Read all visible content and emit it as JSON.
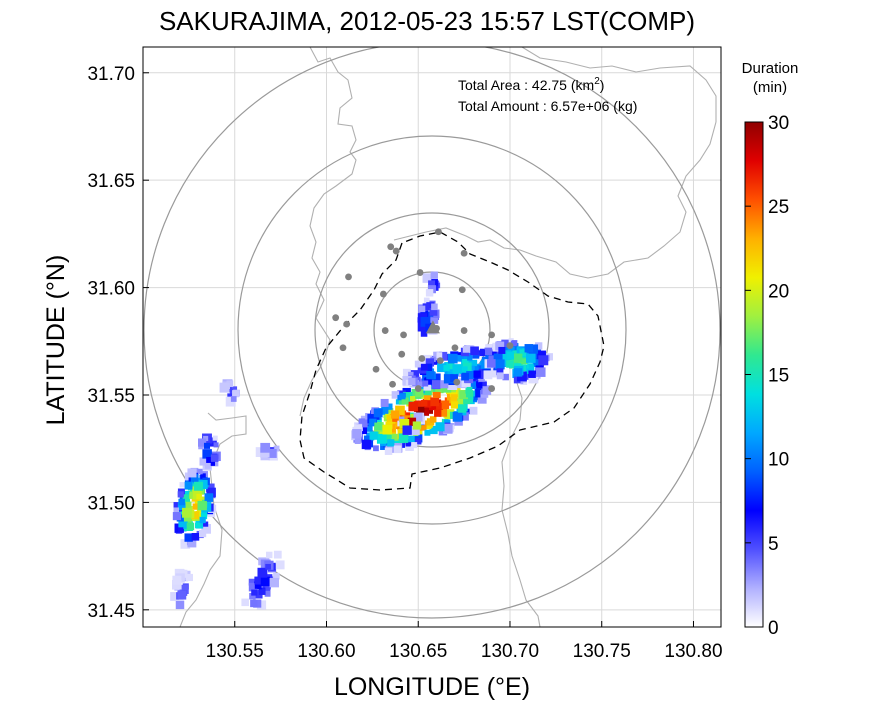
{
  "figure": {
    "title": "SAKURAJIMA, 2012-05-23 15:57 LST(COMP)",
    "annotation_area_label": "Total Area   : 42.75 (km",
    "annotation_area_sup": "2",
    "annotation_area_close": ")",
    "annotation_amount": "Total Amount : 6.57e+06 (kg)"
  },
  "chart_data": {
    "type": "heatmap",
    "title": "SAKURAJIMA, 2012-05-23 15:57 LST(COMP)",
    "xlabel": "LONGITUDE (°E)",
    "ylabel": "LATITUDE (°N)",
    "xlim": [
      130.5,
      130.815
    ],
    "ylim": [
      31.442,
      31.712
    ],
    "x_ticks": [
      "130.55",
      "130.60",
      "130.65",
      "130.70",
      "130.75",
      "130.80"
    ],
    "y_ticks": [
      "31.45",
      "31.50",
      "31.55",
      "31.60",
      "31.65",
      "31.70"
    ],
    "grid": true,
    "colorbar": {
      "title_line1": "Duration",
      "title_line2": "(min)",
      "range": [
        0,
        30
      ],
      "ticks": [
        "0",
        "5",
        "10",
        "15",
        "20",
        "25",
        "30"
      ],
      "colors": [
        "#ffffff",
        "#b0b0ff",
        "#5050ff",
        "#0000ff",
        "#0060ff",
        "#00a8ff",
        "#00e0e0",
        "#30e890",
        "#a0f040",
        "#f0f000",
        "#ffb000",
        "#ff5000",
        "#e00000",
        "#900000"
      ]
    },
    "vent": {
      "lon": 130.658,
      "lat": 31.581
    },
    "range_rings_km": [
      3,
      6,
      10,
      15
    ],
    "stations": [
      {
        "lon": 130.635,
        "lat": 31.619
      },
      {
        "lon": 130.661,
        "lat": 31.626
      },
      {
        "lon": 130.675,
        "lat": 31.616
      },
      {
        "lon": 130.638,
        "lat": 31.617
      },
      {
        "lon": 130.612,
        "lat": 31.605
      },
      {
        "lon": 130.651,
        "lat": 31.607
      },
      {
        "lon": 130.631,
        "lat": 31.597
      },
      {
        "lon": 130.674,
        "lat": 31.599
      },
      {
        "lon": 130.605,
        "lat": 31.586
      },
      {
        "lon": 130.611,
        "lat": 31.583
      },
      {
        "lon": 130.632,
        "lat": 31.58
      },
      {
        "lon": 130.642,
        "lat": 31.578
      },
      {
        "lon": 130.66,
        "lat": 31.581
      },
      {
        "lon": 130.675,
        "lat": 31.58
      },
      {
        "lon": 130.69,
        "lat": 31.578
      },
      {
        "lon": 130.7,
        "lat": 31.573
      },
      {
        "lon": 130.67,
        "lat": 31.572
      },
      {
        "lon": 130.609,
        "lat": 31.572
      },
      {
        "lon": 130.641,
        "lat": 31.569
      },
      {
        "lon": 130.652,
        "lat": 31.567
      },
      {
        "lon": 130.662,
        "lat": 31.566
      },
      {
        "lon": 130.627,
        "lat": 31.562
      },
      {
        "lon": 130.636,
        "lat": 31.555
      },
      {
        "lon": 130.65,
        "lat": 31.553
      },
      {
        "lon": 130.671,
        "lat": 31.556
      },
      {
        "lon": 130.69,
        "lat": 31.553
      }
    ],
    "ash_clusters": [
      {
        "lon": 130.652,
        "lat": 31.542,
        "rx": 0.04,
        "ry": 0.013,
        "rot": -25,
        "peak": 29,
        "n": 260
      },
      {
        "lon": 130.646,
        "lat": 31.537,
        "rx": 0.006,
        "ry": 0.004,
        "rot": 0,
        "peak": 30,
        "n": 25
      },
      {
        "lon": 130.672,
        "lat": 31.563,
        "rx": 0.03,
        "ry": 0.008,
        "rot": -12,
        "peak": 14,
        "n": 150
      },
      {
        "lon": 130.705,
        "lat": 31.566,
        "rx": 0.017,
        "ry": 0.01,
        "rot": 0,
        "peak": 16,
        "n": 90
      },
      {
        "lon": 130.655,
        "lat": 31.585,
        "rx": 0.005,
        "ry": 0.01,
        "rot": 10,
        "peak": 9,
        "n": 28
      },
      {
        "lon": 130.658,
        "lat": 31.602,
        "rx": 0.004,
        "ry": 0.005,
        "rot": 0,
        "peak": 6,
        "n": 10
      },
      {
        "lon": 130.528,
        "lat": 31.498,
        "rx": 0.01,
        "ry": 0.018,
        "rot": 10,
        "peak": 22,
        "n": 100
      },
      {
        "lon": 130.536,
        "lat": 31.524,
        "rx": 0.005,
        "ry": 0.008,
        "rot": 0,
        "peak": 10,
        "n": 22
      },
      {
        "lon": 130.547,
        "lat": 31.551,
        "rx": 0.005,
        "ry": 0.005,
        "rot": 0,
        "peak": 5,
        "n": 12
      },
      {
        "lon": 130.569,
        "lat": 31.524,
        "rx": 0.005,
        "ry": 0.003,
        "rot": 0,
        "peak": 4,
        "n": 9
      },
      {
        "lon": 130.522,
        "lat": 31.458,
        "rx": 0.005,
        "ry": 0.01,
        "rot": 0,
        "peak": 5,
        "n": 18
      },
      {
        "lon": 130.565,
        "lat": 31.463,
        "rx": 0.007,
        "ry": 0.015,
        "rot": 25,
        "peak": 7,
        "n": 36
      }
    ]
  }
}
